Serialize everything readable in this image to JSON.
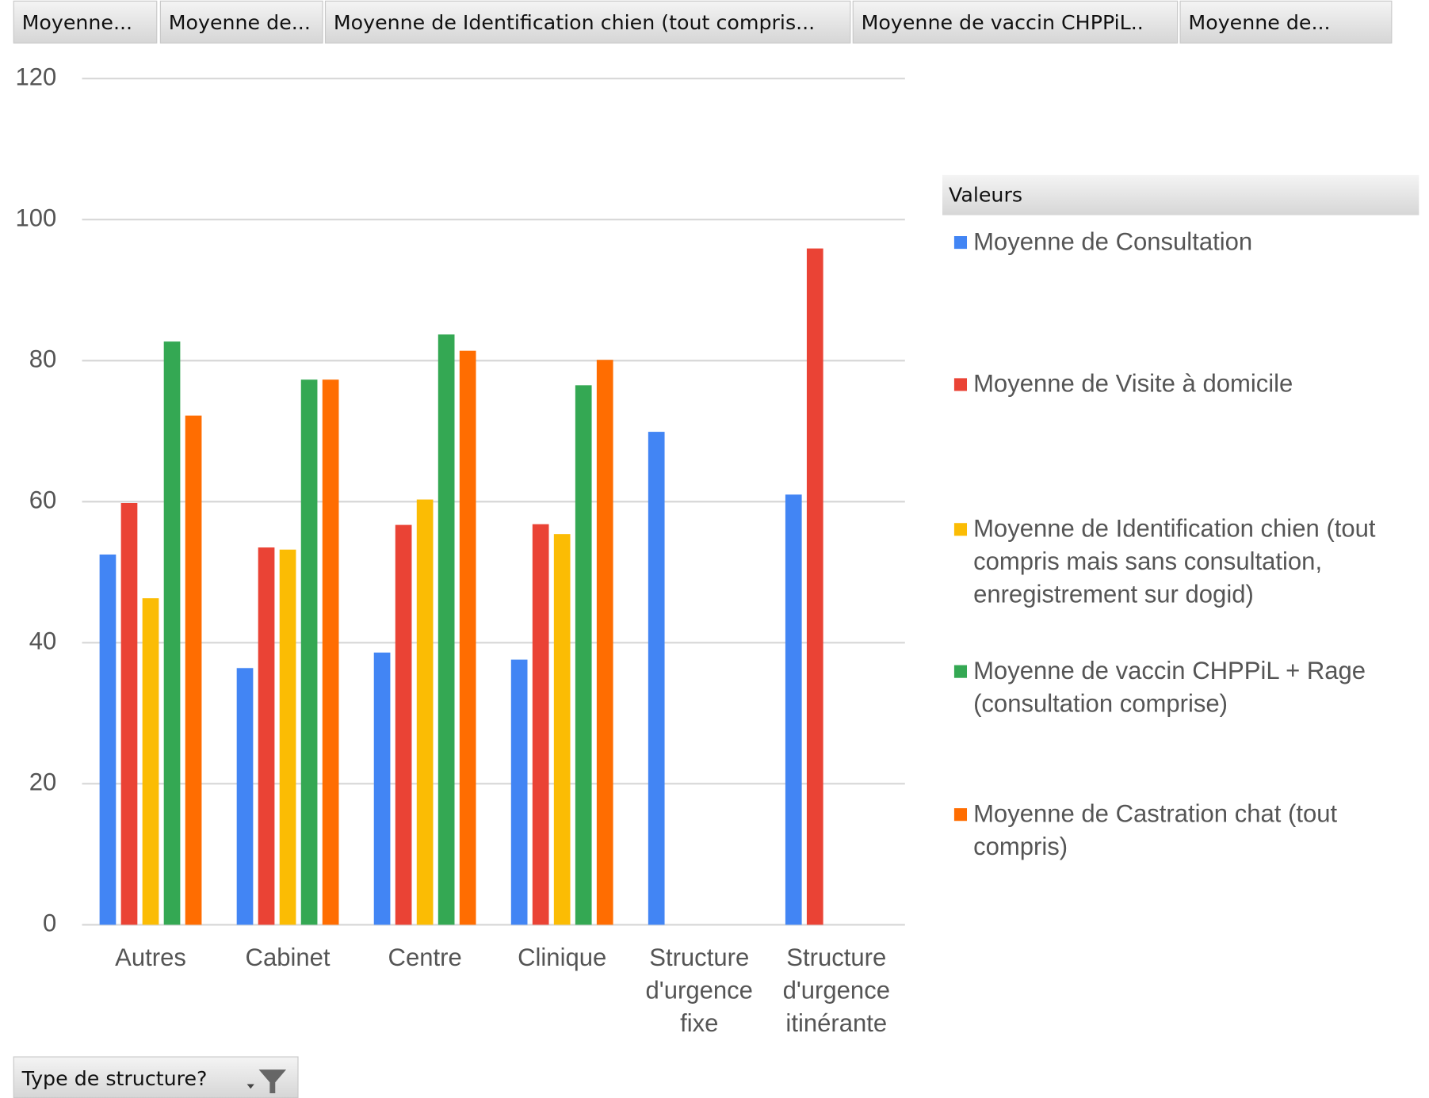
{
  "field_buttons": [
    "Moyenne...",
    "Moyenne de...",
    "Moyenne de Identification chien (tout compris...",
    "Moyenne de vaccin CHPPiL..",
    "Moyenne de..."
  ],
  "filter_button": "Type de structure?",
  "chart_data": {
    "type": "bar",
    "categories": [
      "Autres",
      "Cabinet",
      "Centre",
      "Clinique",
      "Structure d'urgence fixe",
      "Structure d'urgence itinérante"
    ],
    "series": [
      {
        "name": "Moyenne de Consultation",
        "color": "#4285f4",
        "values": [
          52.5,
          36.4,
          38.6,
          37.6,
          69.9,
          61
        ]
      },
      {
        "name": "Moyenne de Visite à domicile",
        "color": "#ea4335",
        "values": [
          59.8,
          53.5,
          56.7,
          56.8,
          null,
          95.9
        ]
      },
      {
        "name": "Moyenne de Identification chien (tout compris mais sans consultation, enregistrement sur dogid)",
        "color": "#fbbc04",
        "values": [
          46.3,
          53.2,
          60.3,
          55.4,
          null,
          null
        ]
      },
      {
        "name": "Moyenne de vaccin CHPPiL + Rage (consultation comprise)",
        "color": "#34a853",
        "values": [
          82.7,
          77.3,
          83.7,
          76.5,
          null,
          null
        ]
      },
      {
        "name": "Moyenne de Castration chat (tout compris)",
        "color": "#ff6d01",
        "values": [
          72.2,
          77.3,
          81.4,
          80.1,
          null,
          null
        ]
      }
    ],
    "legend_title": "Valeurs",
    "legend": "right",
    "ylim": [
      0,
      120
    ],
    "yticks": [
      0,
      20,
      40,
      60,
      80,
      100,
      120
    ],
    "grid": true
  }
}
